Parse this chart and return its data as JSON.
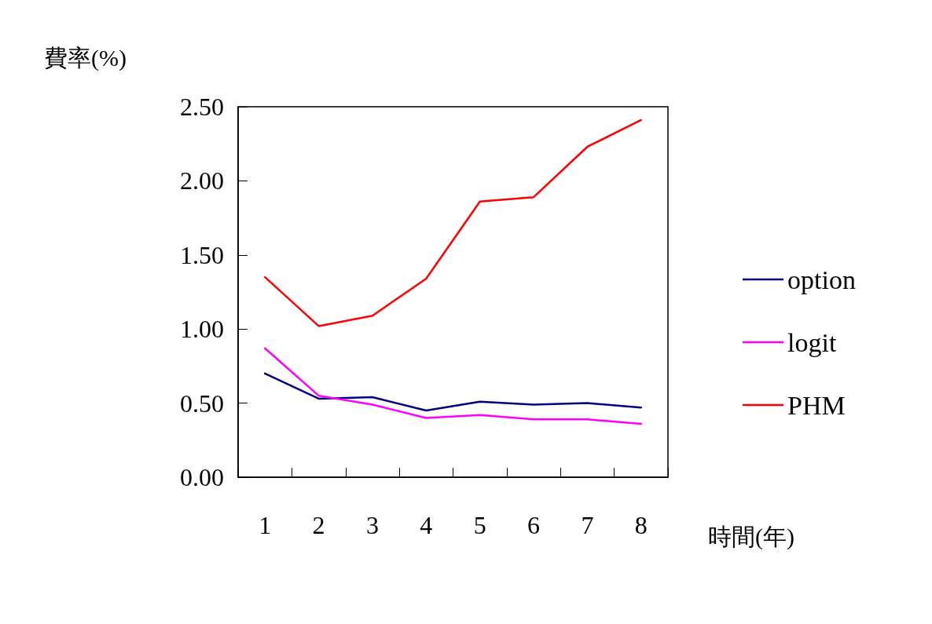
{
  "chart_data": {
    "type": "line",
    "ylabel": "費率(%)",
    "xlabel": "時間(年)",
    "categories": [
      "1",
      "2",
      "3",
      "4",
      "5",
      "6",
      "7",
      "8"
    ],
    "series": [
      {
        "name": "option",
        "color": "#000080",
        "values": [
          0.7,
          0.53,
          0.54,
          0.45,
          0.51,
          0.49,
          0.5,
          0.47
        ]
      },
      {
        "name": "logit",
        "color": "#ff00ff",
        "values": [
          0.87,
          0.55,
          0.49,
          0.4,
          0.42,
          0.39,
          0.39,
          0.36
        ]
      },
      {
        "name": "PHM",
        "color": "#ff0000",
        "values": [
          1.35,
          1.02,
          1.09,
          1.34,
          1.86,
          1.89,
          2.23,
          2.41
        ]
      }
    ],
    "ylim": [
      0,
      2.5
    ],
    "yticks": [
      {
        "value": 0,
        "label": "0.00"
      },
      {
        "value": 0.5,
        "label": "0.50"
      },
      {
        "value": 1,
        "label": "1.00"
      },
      {
        "value": 1.5,
        "label": "1.50"
      },
      {
        "value": 2,
        "label": "2.00"
      },
      {
        "value": 2.5,
        "label": "2.50"
      }
    ],
    "grid": false,
    "legend": "right",
    "marker": "none",
    "line_style": "solid"
  }
}
